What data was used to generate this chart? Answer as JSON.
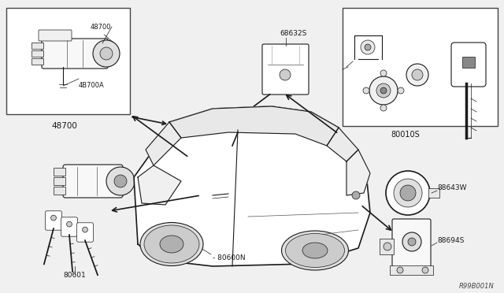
{
  "bg_color": "#f0f0f0",
  "diagram_ref": "R99B001N",
  "labels": {
    "top_left_box_part": "48700",
    "top_left_box_sub": "4B700A",
    "top_left_below": "48700",
    "center_top": "68632S",
    "top_right_box": "80010S",
    "bottom_left": "80601",
    "bottom_center": "80600N",
    "bottom_right_top": "88643W",
    "bottom_right_bottom": "88694S"
  },
  "fig_w": 6.4,
  "fig_h": 3.72,
  "dpi": 100
}
